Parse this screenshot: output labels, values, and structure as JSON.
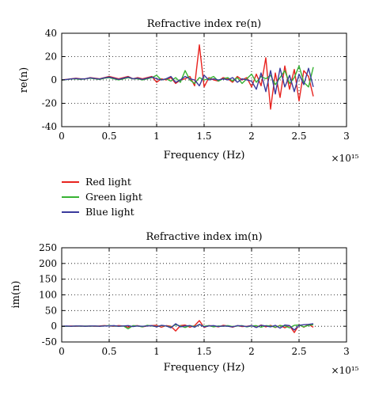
{
  "legend": {
    "items": [
      {
        "label": "Red light",
        "color": "#e8231f"
      },
      {
        "label": "Green light",
        "color": "#37b233"
      },
      {
        "label": "Blue light",
        "color": "#3a3a9c"
      }
    ]
  },
  "chart_data": [
    {
      "type": "line",
      "title": "Refractive index re(n)",
      "xlabel": "Frequency (Hz)",
      "ylabel": "re(n)",
      "x_multiplier": "×10¹⁵",
      "xlim": [
        0,
        3
      ],
      "ylim": [
        -40,
        40
      ],
      "xticks": [
        0,
        0.5,
        1,
        1.5,
        2,
        2.5,
        3
      ],
      "yticks": [
        -40,
        -20,
        0,
        20,
        40
      ],
      "grid": true,
      "x": [
        0.0,
        0.05,
        0.1,
        0.15,
        0.2,
        0.25,
        0.3,
        0.35,
        0.4,
        0.45,
        0.5,
        0.55,
        0.6,
        0.65,
        0.7,
        0.75,
        0.8,
        0.85,
        0.9,
        0.95,
        1.0,
        1.05,
        1.1,
        1.15,
        1.2,
        1.25,
        1.3,
        1.35,
        1.4,
        1.45,
        1.5,
        1.55,
        1.6,
        1.65,
        1.7,
        1.75,
        1.8,
        1.85,
        1.9,
        1.95,
        2.0,
        2.05,
        2.1,
        2.15,
        2.2,
        2.25,
        2.3,
        2.35,
        2.4,
        2.45,
        2.5,
        2.55,
        2.6,
        2.65
      ],
      "series": [
        {
          "name": "Red light",
          "color": "#e8231f",
          "values": [
            0,
            0.5,
            1,
            1.5,
            1,
            1,
            2,
            1.5,
            1,
            2,
            3,
            2,
            1,
            2,
            3,
            1,
            2,
            1,
            2,
            3,
            -2,
            1,
            0,
            2,
            -3,
            0,
            1,
            3,
            -5,
            30,
            -6,
            2,
            0,
            -1,
            2,
            1,
            -2,
            3,
            0,
            2,
            -6,
            5,
            -5,
            19,
            -25,
            6,
            -15,
            12,
            -8,
            9,
            -18,
            8,
            3,
            -14
          ]
        },
        {
          "name": "Green light",
          "color": "#37b233",
          "values": [
            0,
            0.3,
            0.8,
            1,
            0.5,
            1,
            1.5,
            1,
            0.5,
            1.5,
            2,
            1,
            0,
            1,
            2,
            1,
            1,
            0,
            1,
            2,
            4,
            0,
            1,
            -1,
            2,
            -2,
            8,
            0,
            -3,
            2,
            0,
            1,
            3,
            -1,
            1,
            2,
            -1,
            2,
            -3,
            1,
            5,
            -2,
            3,
            1,
            4,
            -4,
            2,
            8,
            -3,
            2,
            12,
            -2,
            -6,
            11
          ]
        },
        {
          "name": "Blue light",
          "color": "#3a3a9c",
          "values": [
            0,
            0.4,
            0.9,
            1.2,
            0.8,
            1,
            1.8,
            1.2,
            0.8,
            1.8,
            2.5,
            1.5,
            0.5,
            1.5,
            2.5,
            1,
            1.5,
            0.5,
            1.5,
            2.5,
            1,
            0,
            1,
            3,
            -2,
            0,
            3,
            1,
            0,
            -5,
            4,
            0,
            1,
            0,
            1,
            0,
            2,
            -2,
            1,
            0,
            -1,
            -8,
            6,
            -10,
            8,
            -12,
            10,
            -6,
            4,
            -10,
            5,
            -4,
            10,
            -6
          ]
        }
      ]
    },
    {
      "type": "line",
      "title": "Refractive index im(n)",
      "xlabel": "Frequency (Hz)",
      "ylabel": "im(n)",
      "x_multiplier": "×10¹⁵",
      "xlim": [
        0,
        3
      ],
      "ylim": [
        -50,
        250
      ],
      "xticks": [
        0,
        0.5,
        1,
        1.5,
        2,
        2.5,
        3
      ],
      "yticks": [
        -50,
        0,
        50,
        100,
        150,
        200,
        250
      ],
      "grid": true,
      "x": [
        0.0,
        0.05,
        0.1,
        0.15,
        0.2,
        0.25,
        0.3,
        0.35,
        0.4,
        0.45,
        0.5,
        0.55,
        0.6,
        0.65,
        0.7,
        0.75,
        0.8,
        0.85,
        0.9,
        0.95,
        1.0,
        1.05,
        1.1,
        1.15,
        1.2,
        1.25,
        1.3,
        1.35,
        1.4,
        1.45,
        1.5,
        1.55,
        1.6,
        1.65,
        1.7,
        1.75,
        1.8,
        1.85,
        1.9,
        1.95,
        2.0,
        2.05,
        2.1,
        2.15,
        2.2,
        2.25,
        2.3,
        2.35,
        2.4,
        2.45,
        2.5,
        2.55,
        2.6,
        2.65
      ],
      "series": [
        {
          "name": "Red light",
          "color": "#e8231f",
          "values": [
            0,
            0,
            1,
            0,
            1,
            0,
            1,
            0,
            1,
            2,
            1,
            0,
            2,
            1,
            -3,
            1,
            2,
            -2,
            1,
            2,
            3,
            -3,
            2,
            0,
            -15,
            2,
            4,
            -3,
            2,
            18,
            -4,
            2,
            1,
            -2,
            3,
            1,
            -3,
            2,
            -1,
            0,
            2,
            -3,
            4,
            -2,
            3,
            -4,
            3,
            -5,
            2,
            -20,
            5,
            -3,
            6,
            -3
          ]
        },
        {
          "name": "Green light",
          "color": "#37b233",
          "values": [
            0,
            0,
            0,
            1,
            0,
            1,
            0,
            1,
            0,
            1,
            2,
            1,
            0,
            1,
            -8,
            2,
            1,
            -2,
            3,
            1,
            -1,
            2,
            1,
            -3,
            5,
            1,
            -4,
            2,
            -1,
            5,
            0,
            2,
            -2,
            1,
            0,
            2,
            -1,
            1,
            2,
            -2,
            1,
            2,
            -3,
            2,
            1,
            -3,
            2,
            1,
            -5,
            3,
            4,
            -2,
            3,
            5
          ]
        },
        {
          "name": "Blue light",
          "color": "#3a3a9c",
          "values": [
            0,
            1,
            0,
            1,
            1,
            0,
            1,
            1,
            0,
            1,
            1,
            2,
            0,
            1,
            2,
            -1,
            1,
            0,
            1,
            2,
            -2,
            3,
            1,
            -5,
            8,
            -2,
            1,
            2,
            -3,
            6,
            -2,
            1,
            2,
            -1,
            1,
            0,
            -2,
            2,
            1,
            -1,
            2,
            -4,
            3,
            1,
            -2,
            3,
            -6,
            4,
            2,
            -12,
            3,
            5,
            6,
            8
          ]
        }
      ]
    }
  ]
}
